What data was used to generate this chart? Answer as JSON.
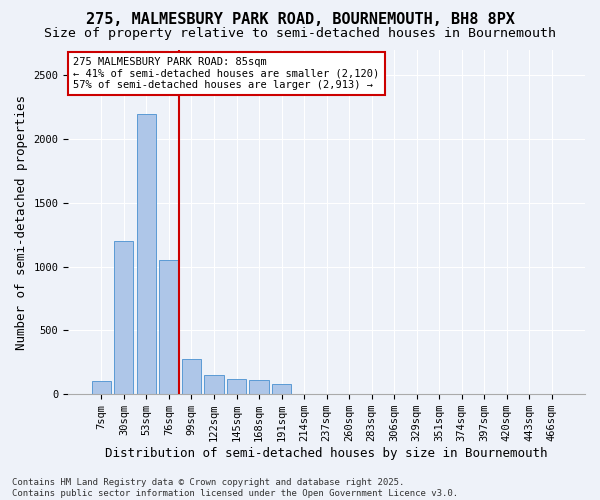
{
  "title_line1": "275, MALMESBURY PARK ROAD, BOURNEMOUTH, BH8 8PX",
  "title_line2": "Size of property relative to semi-detached houses in Bournemouth",
  "xlabel": "Distribution of semi-detached houses by size in Bournemouth",
  "ylabel": "Number of semi-detached properties",
  "footnote": "Contains HM Land Registry data © Crown copyright and database right 2025.\nContains public sector information licensed under the Open Government Licence v3.0.",
  "bin_labels": [
    "7sqm",
    "30sqm",
    "53sqm",
    "76sqm",
    "99sqm",
    "122sqm",
    "145sqm",
    "168sqm",
    "191sqm",
    "214sqm",
    "237sqm",
    "260sqm",
    "283sqm",
    "306sqm",
    "329sqm",
    "351sqm",
    "374sqm",
    "397sqm",
    "420sqm",
    "443sqm",
    "466sqm"
  ],
  "bar_values": [
    100,
    1200,
    2200,
    1050,
    280,
    150,
    120,
    110,
    80,
    0,
    0,
    0,
    0,
    0,
    0,
    0,
    0,
    0,
    0,
    0,
    0
  ],
  "bar_color": "#aec6e8",
  "bar_edge_color": "#5b9bd5",
  "vline_x_index": 3,
  "vline_color": "#cc0000",
  "annotation_box_text": "275 MALMESBURY PARK ROAD: 85sqm\n← 41% of semi-detached houses are smaller (2,120)\n57% of semi-detached houses are larger (2,913) →",
  "ylim": [
    0,
    2700
  ],
  "yticks": [
    0,
    500,
    1000,
    1500,
    2000,
    2500
  ],
  "background_color": "#eef2f9",
  "grid_color": "#ffffff",
  "title_fontsize": 11,
  "subtitle_fontsize": 9.5,
  "axis_label_fontsize": 9,
  "tick_fontsize": 7.5,
  "annotation_fontsize": 7.5,
  "footnote_fontsize": 6.5
}
